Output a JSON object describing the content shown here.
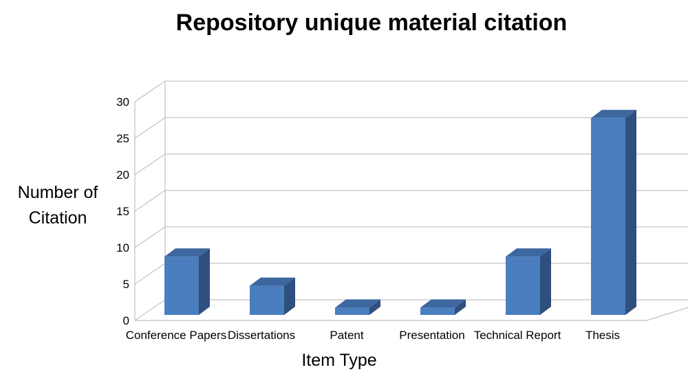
{
  "chart_data": {
    "type": "bar",
    "title": "Repository unique material citation",
    "xlabel": "Item Type",
    "ylabel": "Number of Citation",
    "ylabel_lines": [
      "Number of",
      "Citation"
    ],
    "categories": [
      "Conference Papers",
      "Dissertations",
      "Patent",
      "Presentation",
      "Technical Report",
      "Thesis"
    ],
    "values": [
      8,
      4,
      1,
      1,
      8,
      27
    ],
    "ylim": [
      0,
      30
    ],
    "yticks": [
      0,
      5,
      10,
      15,
      20,
      25,
      30
    ],
    "grid": true,
    "style": "3d-column",
    "colors": {
      "front": "#4a7ebf",
      "side": "#2f4f7e",
      "top": "#3d679e",
      "grid": "#b3b3b3"
    }
  }
}
